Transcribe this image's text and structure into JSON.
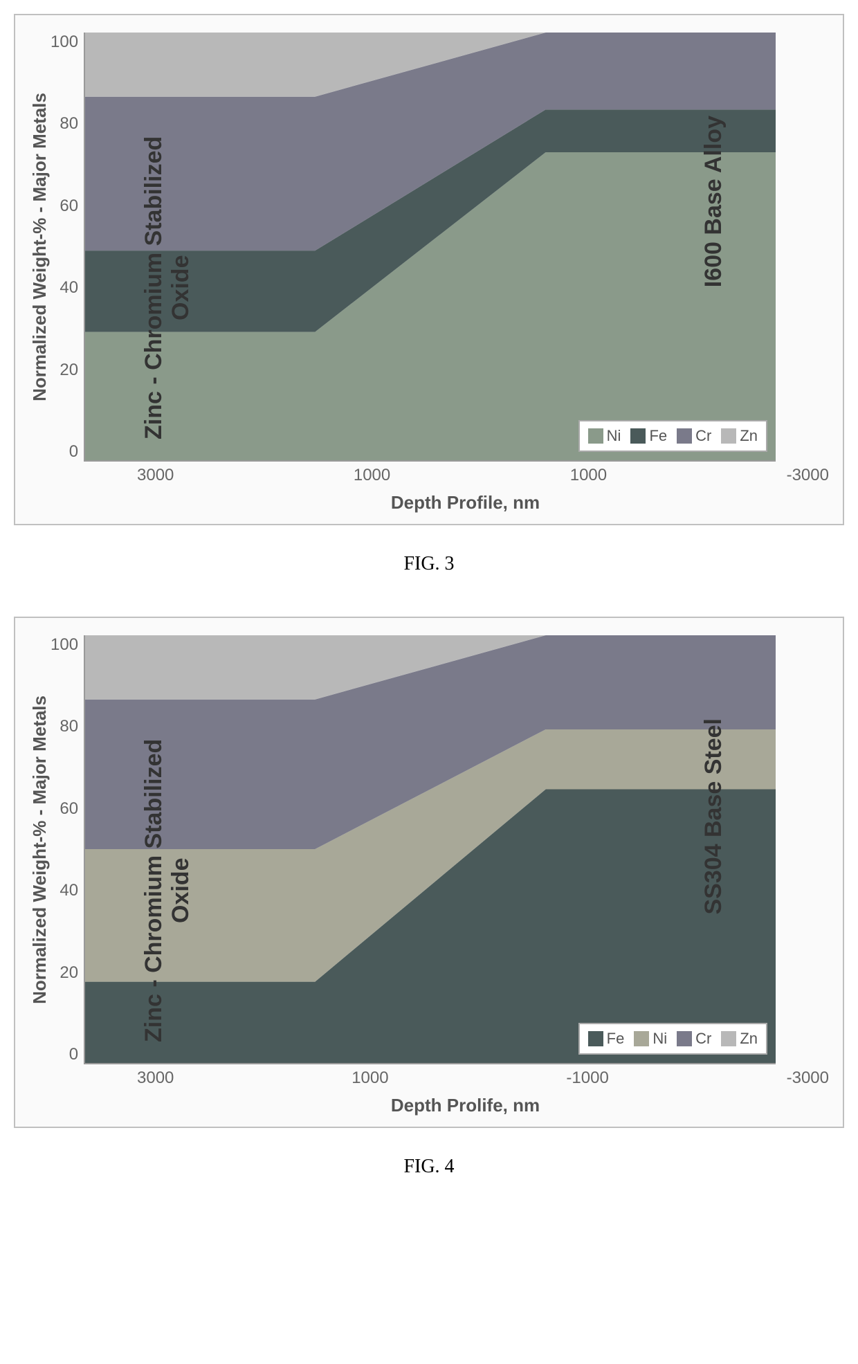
{
  "figures": [
    {
      "caption": "FIG. 3",
      "y_label": "Normalized Weight-% - Major Metals",
      "x_label": "Depth Profile, nm",
      "y_ticks": [
        "100",
        "80",
        "60",
        "40",
        "20",
        "0"
      ],
      "x_ticks": [
        "3000",
        "1000",
        "1000",
        "-3000"
      ],
      "region_left_label": "Zinc - Chromium Stabilized Oxide",
      "region_right_label": "I600 Base Alloy",
      "legend_items": [
        {
          "label": "Ni",
          "color": "#8a9a8a"
        },
        {
          "label": "Fe",
          "color": "#4a5a5a"
        },
        {
          "label": "Cr",
          "color": "#7a7a8a"
        },
        {
          "label": "Zn",
          "color": "#b8b8b8"
        }
      ],
      "chart": {
        "type": "stacked-area",
        "x_values": [
          0,
          33.3,
          66.7,
          100
        ],
        "series": [
          {
            "name": "Ni",
            "color": "#8a9a8a",
            "values": [
              30,
              30,
              72,
              72
            ]
          },
          {
            "name": "Fe",
            "color": "#4a5a5a",
            "values": [
              19,
              19,
              10,
              10
            ]
          },
          {
            "name": "Cr",
            "color": "#7a7a8a",
            "values": [
              36,
              36,
              18,
              18
            ]
          },
          {
            "name": "Zn",
            "color": "#b8b8b8",
            "values": [
              15,
              15,
              0,
              0
            ]
          }
        ],
        "ylim": [
          0,
          100
        ],
        "background_color": "#fafafa",
        "grid_color": "#dddddd"
      }
    },
    {
      "caption": "FIG. 4",
      "y_label": "Normalized Weight-% - Major Metals",
      "x_label": "Depth Prolife, nm",
      "y_ticks": [
        "100",
        "80",
        "60",
        "40",
        "20",
        "0"
      ],
      "x_ticks": [
        "3000",
        "1000",
        "-1000",
        "-3000"
      ],
      "region_left_label": "Zinc - Chromium Stabilized Oxide",
      "region_right_label": "SS304 Base Steel",
      "legend_items": [
        {
          "label": "Fe",
          "color": "#4a5a5a"
        },
        {
          "label": "Ni",
          "color": "#a8a898"
        },
        {
          "label": "Cr",
          "color": "#7a7a8a"
        },
        {
          "label": "Zn",
          "color": "#b8b8b8"
        }
      ],
      "chart": {
        "type": "stacked-area",
        "x_values": [
          0,
          33.3,
          66.7,
          100
        ],
        "series": [
          {
            "name": "Fe",
            "color": "#4a5a5a",
            "values": [
              19,
              19,
              64,
              64
            ]
          },
          {
            "name": "Ni",
            "color": "#a8a898",
            "values": [
              31,
              31,
              14,
              14
            ]
          },
          {
            "name": "Cr",
            "color": "#7a7a8a",
            "values": [
              35,
              35,
              22,
              22
            ]
          },
          {
            "name": "Zn",
            "color": "#b8b8b8",
            "values": [
              15,
              15,
              0,
              0
            ]
          }
        ],
        "ylim": [
          0,
          100
        ],
        "background_color": "#fafafa",
        "grid_color": "#dddddd"
      }
    }
  ]
}
